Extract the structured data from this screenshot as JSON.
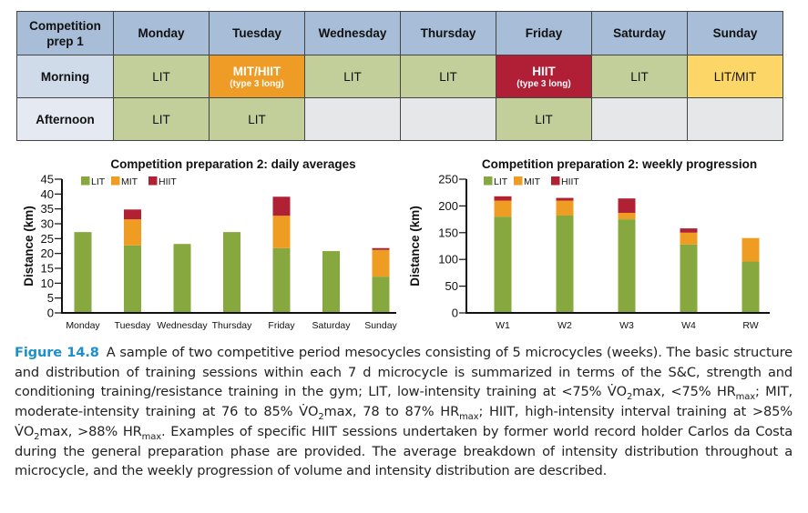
{
  "schedule": {
    "corner_label_line1": "Competition",
    "corner_label_line2": "prep 1",
    "days": [
      "Monday",
      "Tuesday",
      "Wednesday",
      "Thursday",
      "Friday",
      "Saturday",
      "Sunday"
    ],
    "rows": [
      {
        "label": "Morning",
        "cells": [
          {
            "main": "LIT",
            "sub": "",
            "type": "LIT"
          },
          {
            "main": "MIT/HIIT",
            "sub": "(type 3 long)",
            "type": "MITHIIT"
          },
          {
            "main": "LIT",
            "sub": "",
            "type": "LIT"
          },
          {
            "main": "LIT",
            "sub": "",
            "type": "LIT"
          },
          {
            "main": "HIIT",
            "sub": "(type 3 long)",
            "type": "HIIT"
          },
          {
            "main": "LIT",
            "sub": "",
            "type": "LIT"
          },
          {
            "main": "LIT/MIT",
            "sub": "",
            "type": "LITMIT"
          }
        ]
      },
      {
        "label": "Afternoon",
        "cells": [
          {
            "main": "LIT",
            "sub": "",
            "type": "LIT"
          },
          {
            "main": "LIT",
            "sub": "",
            "type": "LIT"
          },
          {
            "main": "",
            "sub": "",
            "type": "empty"
          },
          {
            "main": "",
            "sub": "",
            "type": "empty"
          },
          {
            "main": "LIT",
            "sub": "",
            "type": "LIT"
          },
          {
            "main": "",
            "sub": "",
            "type": "empty"
          },
          {
            "main": "",
            "sub": "",
            "type": "empty"
          }
        ]
      }
    ],
    "colors": {
      "header": "#a7bdd8",
      "LIT": "#c2cf9a",
      "MITHIIT": "#ee9c25",
      "HIIT": "#b01f36",
      "LITMIT": "#fdd668",
      "empty": "#e6e7e9"
    }
  },
  "chart_data": [
    {
      "type": "bar",
      "stacked": true,
      "title": "Competition preparation 2: daily averages",
      "xlabel": "",
      "ylabel": "Distance (km)",
      "ylim": [
        0,
        45
      ],
      "yticks": [
        0,
        5,
        10,
        15,
        20,
        25,
        30,
        35,
        40,
        45
      ],
      "grid": false,
      "legend_position": "top-left",
      "categories": [
        "Monday",
        "Tuesday",
        "Wednesday",
        "Thursday",
        "Friday",
        "Saturday",
        "Sunday"
      ],
      "series": [
        {
          "name": "LIT",
          "color": "#86a83f",
          "values": [
            27.2,
            22.7,
            23.2,
            27.2,
            21.8,
            20.8,
            12.2
          ]
        },
        {
          "name": "MIT",
          "color": "#ee9c22",
          "values": [
            0,
            8.8,
            0,
            0,
            10.9,
            0,
            9.0
          ]
        },
        {
          "name": "HIIT",
          "color": "#b02134",
          "values": [
            0,
            3.3,
            0,
            0,
            6.4,
            0,
            0.6
          ]
        }
      ]
    },
    {
      "type": "bar",
      "stacked": true,
      "title": "Competition preparation 2: weekly progression",
      "xlabel": "",
      "ylabel": "Distance (km)",
      "ylim": [
        0,
        250
      ],
      "yticks": [
        0,
        50,
        100,
        150,
        200,
        250
      ],
      "grid": false,
      "legend_position": "top-left",
      "categories": [
        "W1",
        "W2",
        "W3",
        "W4",
        "RW"
      ],
      "series": [
        {
          "name": "LIT",
          "color": "#86a83f",
          "values": [
            180,
            182,
            175,
            128,
            96
          ]
        },
        {
          "name": "MIT",
          "color": "#ee9c22",
          "values": [
            30,
            28,
            12,
            22,
            44
          ]
        },
        {
          "name": "HIIT",
          "color": "#b02134",
          "values": [
            8,
            5,
            27,
            8,
            0
          ]
        }
      ]
    }
  ],
  "caption": {
    "figure_label": "Figure 14.8",
    "segments": [
      "A sample of two competitive period mesocycles consisting of 5 microcycles (weeks). The basic structure and distribution of training sessions within each 7 d microcycle is summarized in terms of the S&C, strength and conditioning training/resistance training in the gym; LIT, low-intensity training at <75% ",
      "VO",
      "2",
      "max, <75% HR",
      "max",
      "; MIT, moderate-intensity training at 76 to 85% ",
      "VO",
      "2",
      "max, 78 to 87% HR",
      "max",
      "; HIIT, high-intensity interval training at >85% ",
      "VO",
      "2",
      "max, >88% HR",
      "max",
      ". Examples of specific HIIT sessions undertaken by former world record holder Carlos da Costa during the general preparation phase are provided. The average breakdown of intensity distribution throughout a microcycle, and the weekly progression of volume and intensity distribution are described."
    ]
  }
}
